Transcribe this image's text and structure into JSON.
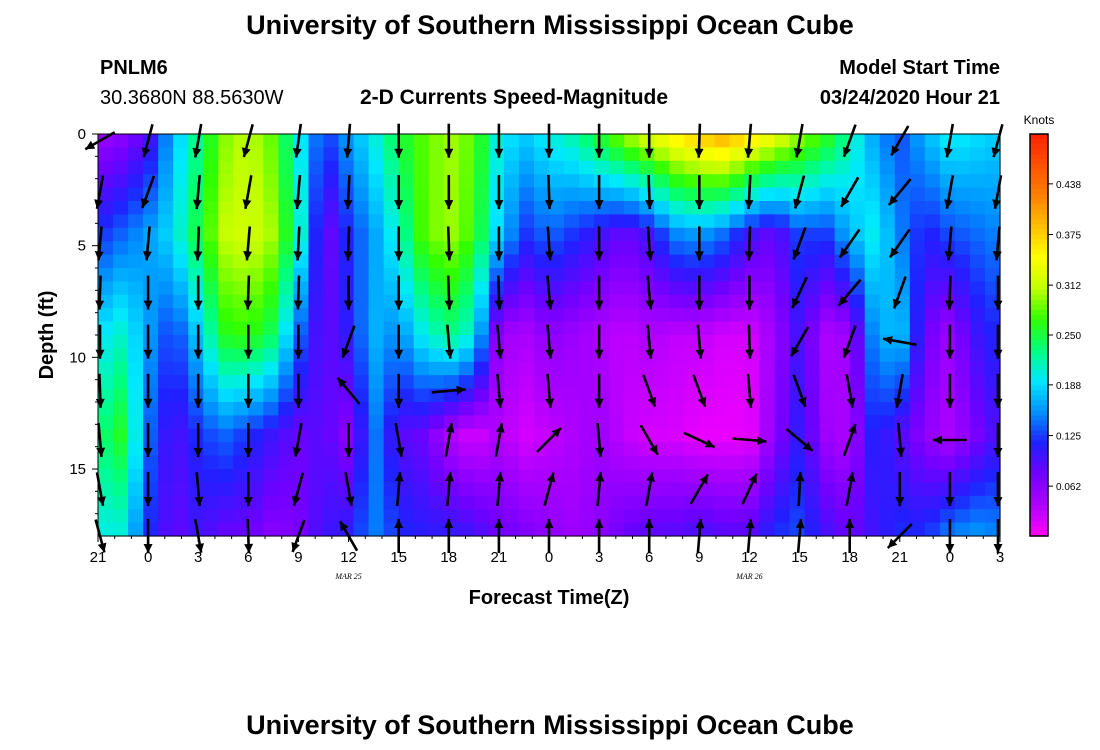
{
  "header": {
    "title": "University of Southern Mississippi Ocean Cube",
    "station_id": "PNLM6",
    "station_coords": "30.3680N 88.5630W",
    "chart_title": "2-D Currents Speed-Magnitude",
    "model_start_label": "Model Start Time",
    "model_start_value": "03/24/2020 Hour 21"
  },
  "footer": {
    "title": "University of Southern Mississippi Ocean Cube"
  },
  "chart_data": {
    "type": "heatmap",
    "title": "2-D Currents Speed-Magnitude",
    "xlabel": "Forecast Time(Z)",
    "ylabel": "Depth (ft)",
    "x_ticks": [
      "21",
      "0",
      "3",
      "6",
      "9",
      "12",
      "15",
      "18",
      "21",
      "0",
      "3",
      "6",
      "9",
      "12",
      "15",
      "18",
      "21",
      "0",
      "3"
    ],
    "x_hours": [
      0,
      3,
      6,
      9,
      12,
      15,
      18,
      21,
      24,
      27,
      30,
      33,
      36,
      39,
      42,
      45,
      48,
      51,
      54
    ],
    "x_hour_labels": [
      "MAR 24 21Z",
      "MAR 25 0Z",
      "MAR 25 3Z",
      "MAR 25 6Z",
      "MAR 25 9Z",
      "MAR 25 12Z",
      "MAR 25 15Z",
      "MAR 25 18Z",
      "MAR 25 21Z",
      "MAR 26 0Z",
      "MAR 26 3Z",
      "MAR 26 6Z",
      "MAR 26 9Z",
      "MAR 26 12Z",
      "MAR 26 15Z",
      "MAR 26 18Z",
      "MAR 26 21Z",
      "MAR 27 0Z",
      "MAR 27 3Z"
    ],
    "date_labels": [
      {
        "text": "MAR 25",
        "hour": 15
      },
      {
        "text": "MAR 26",
        "hour": 39
      }
    ],
    "y_ticks": [
      0,
      5,
      10,
      15
    ],
    "ylim": [
      0,
      18
    ],
    "depth_range_ft": [
      0,
      18
    ],
    "colorbar": {
      "unit": "Knots",
      "ticks": [
        0.062,
        0.125,
        0.188,
        0.25,
        0.312,
        0.375,
        0.438
      ],
      "range": [
        0,
        0.5
      ],
      "colors": [
        "#ff00ff",
        "#b000ff",
        "#7000ff",
        "#2020ff",
        "#0090ff",
        "#00e8ff",
        "#00ff80",
        "#30ff00",
        "#c0ff00",
        "#ffff00",
        "#ffc000",
        "#ff8000",
        "#ff5000",
        "#ff2000"
      ]
    },
    "speed_field": {
      "units": "knots",
      "time_hours": [
        0,
        1.5,
        3,
        4.5,
        6,
        7.5,
        9,
        10.5,
        12,
        13.5,
        15,
        16.5,
        18,
        19.5,
        21,
        22.5,
        24,
        25.5,
        27,
        28.5,
        30,
        31.5,
        33,
        34.5,
        36,
        37.5,
        39,
        40.5,
        42,
        43.5,
        45,
        46.5,
        48,
        49.5,
        51,
        52.5,
        54
      ],
      "depth_ft": [
        0,
        4.5,
        9,
        13.5,
        18
      ],
      "speed": [
        [
          0.05,
          0.12,
          0.19,
          0.23,
          0.2
        ],
        [
          0.06,
          0.14,
          0.21,
          0.26,
          0.2
        ],
        [
          0.09,
          0.16,
          0.16,
          0.14,
          0.12
        ],
        [
          0.17,
          0.19,
          0.12,
          0.09,
          0.08
        ],
        [
          0.23,
          0.25,
          0.18,
          0.12,
          0.1
        ],
        [
          0.29,
          0.31,
          0.26,
          0.14,
          0.08
        ],
        [
          0.31,
          0.32,
          0.27,
          0.12,
          0.08
        ],
        [
          0.28,
          0.3,
          0.24,
          0.1,
          0.06
        ],
        [
          0.2,
          0.22,
          0.14,
          0.08,
          0.07
        ],
        [
          0.12,
          0.07,
          0.08,
          0.09,
          0.1
        ],
        [
          0.16,
          0.12,
          0.11,
          0.06,
          0.11
        ],
        [
          0.2,
          0.16,
          0.17,
          0.15,
          0.15
        ],
        [
          0.25,
          0.21,
          0.15,
          0.09,
          0.12
        ],
        [
          0.28,
          0.28,
          0.2,
          0.08,
          0.11
        ],
        [
          0.3,
          0.3,
          0.23,
          0.04,
          0.11
        ],
        [
          0.28,
          0.27,
          0.2,
          0.02,
          0.1
        ],
        [
          0.2,
          0.18,
          0.05,
          0.04,
          0.08
        ],
        [
          0.18,
          0.12,
          0.04,
          0.02,
          0.07
        ],
        [
          0.2,
          0.14,
          0.06,
          0.03,
          0.06
        ],
        [
          0.22,
          0.12,
          0.05,
          0.04,
          0.05
        ],
        [
          0.26,
          0.1,
          0.04,
          0.05,
          0.06
        ],
        [
          0.3,
          0.08,
          0.03,
          0.03,
          0.08
        ],
        [
          0.33,
          0.1,
          0.04,
          0.02,
          0.09
        ],
        [
          0.36,
          0.15,
          0.03,
          0.02,
          0.09
        ],
        [
          0.38,
          0.16,
          0.03,
          0.01,
          0.1
        ],
        [
          0.4,
          0.14,
          0.02,
          0.01,
          0.09
        ],
        [
          0.37,
          0.1,
          0.02,
          0.01,
          0.09
        ],
        [
          0.34,
          0.08,
          0.05,
          0.06,
          0.12
        ],
        [
          0.3,
          0.13,
          0.1,
          0.11,
          0.13
        ],
        [
          0.27,
          0.12,
          0.04,
          0.05,
          0.1
        ],
        [
          0.22,
          0.17,
          0.05,
          0.04,
          0.08
        ],
        [
          0.16,
          0.2,
          0.16,
          0.12,
          0.1
        ],
        [
          0.13,
          0.15,
          0.18,
          0.09,
          0.12
        ],
        [
          0.17,
          0.11,
          0.08,
          0.06,
          0.12
        ],
        [
          0.2,
          0.13,
          0.05,
          0.04,
          0.15
        ],
        [
          0.19,
          0.14,
          0.1,
          0.07,
          0.16
        ],
        [
          0.18,
          0.15,
          0.12,
          0.1,
          0.15
        ]
      ]
    },
    "current_vectors": {
      "description_hours_step": 3,
      "depth_ft": [
        0.3,
        2.6,
        4.9,
        7.1,
        9.3,
        11.5,
        13.7,
        15.9,
        18
      ],
      "angle_deg_from_north": [
        [
          240,
          190,
          185,
          182,
          180,
          178,
          175,
          170,
          165
        ],
        [
          195,
          200,
          185,
          180,
          180,
          180,
          180,
          180,
          180
        ],
        [
          190,
          185,
          182,
          180,
          180,
          180,
          180,
          175,
          170
        ],
        [
          195,
          190,
          185,
          182,
          180,
          180,
          180,
          180,
          178
        ],
        [
          188,
          185,
          183,
          182,
          180,
          180,
          190,
          195,
          200
        ],
        [
          185,
          183,
          182,
          180,
          200,
          320,
          180,
          170,
          330
        ],
        [
          180,
          180,
          180,
          180,
          180,
          180,
          170,
          5,
          0
        ],
        [
          180,
          180,
          178,
          178,
          175,
          85,
          10,
          5,
          0
        ],
        [
          180,
          180,
          180,
          178,
          175,
          175,
          10,
          5,
          0
        ],
        [
          180,
          178,
          176,
          175,
          175,
          175,
          45,
          15,
          0
        ],
        [
          180,
          180,
          180,
          180,
          180,
          180,
          175,
          5,
          0
        ],
        [
          180,
          178,
          176,
          175,
          175,
          160,
          150,
          10,
          0
        ],
        [
          182,
          180,
          180,
          180,
          175,
          160,
          115,
          30,
          5
        ],
        [
          185,
          183,
          182,
          180,
          178,
          175,
          95,
          25,
          5
        ],
        [
          190,
          195,
          200,
          205,
          210,
          160,
          130,
          3,
          5
        ],
        [
          200,
          210,
          215,
          220,
          200,
          170,
          20,
          10,
          0
        ],
        [
          210,
          220,
          215,
          200,
          280,
          190,
          175,
          180,
          225
        ],
        [
          190,
          190,
          185,
          182,
          180,
          180,
          270,
          180,
          180
        ],
        [
          195,
          190,
          185,
          180,
          180,
          180,
          180,
          180,
          180
        ]
      ]
    }
  }
}
